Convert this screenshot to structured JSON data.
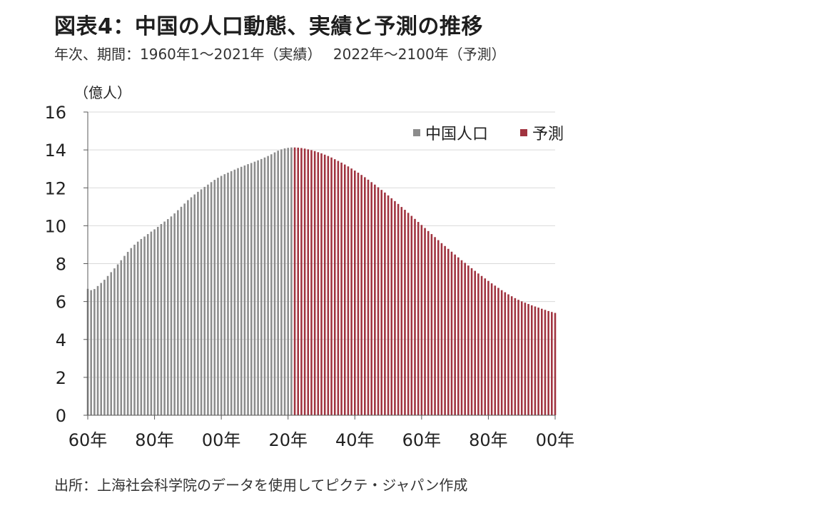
{
  "title": "図表4：中国の人口動態、実績と予測の推移",
  "subtitle": "年次、期間：1960年1～2021年（実績）　 2022年～2100年（予測）",
  "source": "出所：上海社会科学院のデータを使用してピクテ・ジャパン作成",
  "colors": {
    "actual": "#8c8c8c",
    "forecast": "#a0333f",
    "grid": "#d9d9d9",
    "axis": "#595959"
  },
  "chart_data": {
    "type": "bar",
    "unit_label": "（億人）",
    "ylim": [
      0,
      16
    ],
    "yticks": [
      "0",
      "2",
      "4",
      "6",
      "8",
      "10",
      "12",
      "14",
      "16"
    ],
    "xlim": [
      1960,
      2100
    ],
    "xtick_years": [
      1960,
      1980,
      2000,
      2020,
      2040,
      2060,
      2080,
      2100
    ],
    "xtick_labels": [
      "60年",
      "80年",
      "00年",
      "20年",
      "40年",
      "60年",
      "80年",
      "00年"
    ],
    "grid": true,
    "legend_position": "top-right",
    "series": [
      {
        "name": "中国人口",
        "x": [
          1960,
          1961,
          1962,
          1963,
          1964,
          1965,
          1966,
          1967,
          1968,
          1969,
          1970,
          1971,
          1972,
          1973,
          1974,
          1975,
          1976,
          1977,
          1978,
          1979,
          1980,
          1981,
          1982,
          1983,
          1984,
          1985,
          1986,
          1987,
          1988,
          1989,
          1990,
          1991,
          1992,
          1993,
          1994,
          1995,
          1996,
          1997,
          1998,
          1999,
          2000,
          2001,
          2002,
          2003,
          2004,
          2005,
          2006,
          2007,
          2008,
          2009,
          2010,
          2011,
          2012,
          2013,
          2014,
          2015,
          2016,
          2017,
          2018,
          2019,
          2020,
          2021
        ],
        "values": [
          6.67,
          6.6,
          6.66,
          6.82,
          6.98,
          7.15,
          7.35,
          7.55,
          7.75,
          7.96,
          8.18,
          8.41,
          8.62,
          8.82,
          9.0,
          9.16,
          9.3,
          9.43,
          9.56,
          9.69,
          9.81,
          9.94,
          10.09,
          10.22,
          10.35,
          10.49,
          10.65,
          10.82,
          11.0,
          11.17,
          11.35,
          11.5,
          11.65,
          11.79,
          11.92,
          12.05,
          12.17,
          12.3,
          12.42,
          12.53,
          12.63,
          12.72,
          12.8,
          12.88,
          12.96,
          13.04,
          13.11,
          13.18,
          13.25,
          13.31,
          13.38,
          13.45,
          13.52,
          13.6,
          13.68,
          13.77,
          13.87,
          13.96,
          14.03,
          14.08,
          14.11,
          14.13
        ]
      },
      {
        "name": "予測",
        "x": [
          2022,
          2023,
          2024,
          2025,
          2026,
          2027,
          2028,
          2029,
          2030,
          2031,
          2032,
          2033,
          2034,
          2035,
          2036,
          2037,
          2038,
          2039,
          2040,
          2041,
          2042,
          2043,
          2044,
          2045,
          2046,
          2047,
          2048,
          2049,
          2050,
          2051,
          2052,
          2053,
          2054,
          2055,
          2056,
          2057,
          2058,
          2059,
          2060,
          2061,
          2062,
          2063,
          2064,
          2065,
          2066,
          2067,
          2068,
          2069,
          2070,
          2071,
          2072,
          2073,
          2074,
          2075,
          2076,
          2077,
          2078,
          2079,
          2080,
          2081,
          2082,
          2083,
          2084,
          2085,
          2086,
          2087,
          2088,
          2089,
          2090,
          2091,
          2092,
          2093,
          2094,
          2095,
          2096,
          2097,
          2098,
          2099,
          2100
        ],
        "values": [
          14.13,
          14.12,
          14.1,
          14.07,
          14.03,
          13.99,
          13.94,
          13.88,
          13.82,
          13.75,
          13.68,
          13.6,
          13.51,
          13.42,
          13.33,
          13.23,
          13.13,
          13.02,
          12.91,
          12.8,
          12.68,
          12.56,
          12.43,
          12.3,
          12.17,
          12.03,
          11.89,
          11.75,
          11.6,
          11.45,
          11.3,
          11.15,
          10.99,
          10.84,
          10.68,
          10.52,
          10.36,
          10.2,
          10.04,
          9.88,
          9.72,
          9.56,
          9.4,
          9.24,
          9.08,
          8.93,
          8.78,
          8.63,
          8.48,
          8.33,
          8.18,
          8.04,
          7.9,
          7.76,
          7.62,
          7.48,
          7.35,
          7.22,
          7.09,
          6.96,
          6.84,
          6.72,
          6.6,
          6.49,
          6.38,
          6.28,
          6.18,
          6.09,
          6.01,
          5.94,
          5.87,
          5.8,
          5.74,
          5.68,
          5.62,
          5.56,
          5.5,
          5.45,
          5.4
        ]
      }
    ]
  }
}
